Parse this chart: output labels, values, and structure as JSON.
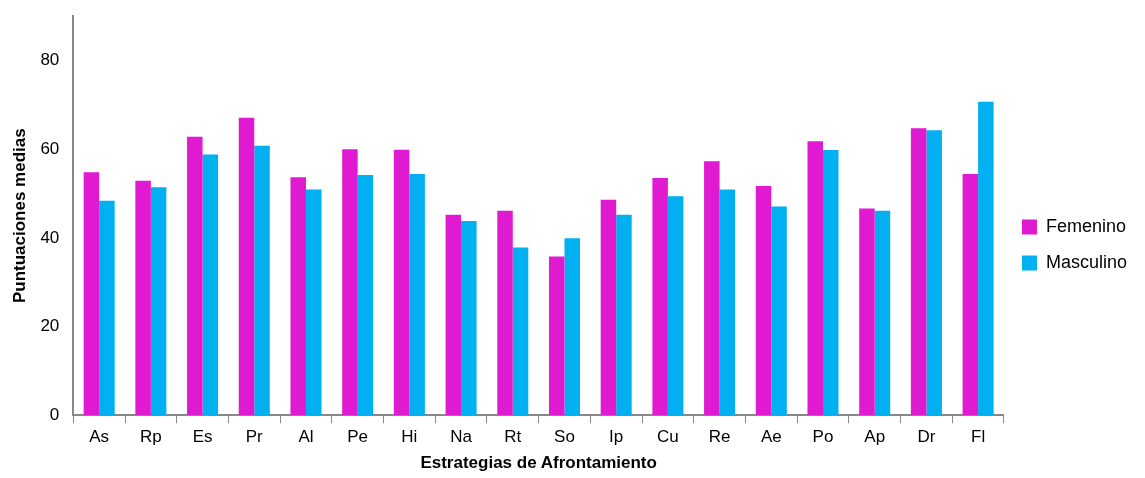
{
  "chart_data": {
    "type": "bar",
    "xlabel": "Estrategias de Afrontamiento",
    "ylabel": "Puntuaciones medias",
    "categories": [
      "As",
      "Rp",
      "Es",
      "Pr",
      "Al",
      "Pe",
      "Hi",
      "Na",
      "Rt",
      "So",
      "Ip",
      "Cu",
      "Re",
      "Ae",
      "Po",
      "Ap",
      "Dr",
      "Fl"
    ],
    "series": [
      {
        "name": "Femenino",
        "color": "#e01ad0",
        "values": [
          54.8,
          52.9,
          62.8,
          67.1,
          53.7,
          60.0,
          59.9,
          45.2,
          46.1,
          35.8,
          48.6,
          53.5,
          57.3,
          51.7,
          61.8,
          46.6,
          64.7,
          54.4
        ]
      },
      {
        "name": "Masculino",
        "color": "#00b0f0",
        "values": [
          48.4,
          51.4,
          58.8,
          60.8,
          50.9,
          54.2,
          54.4,
          43.8,
          37.8,
          39.9,
          45.2,
          49.4,
          50.9,
          47.1,
          59.8,
          46.1,
          64.3,
          70.7
        ]
      }
    ],
    "ylim": [
      0,
      90
    ],
    "yticks": [
      0,
      20,
      40,
      60,
      80
    ],
    "grid": false,
    "legend": "right"
  }
}
